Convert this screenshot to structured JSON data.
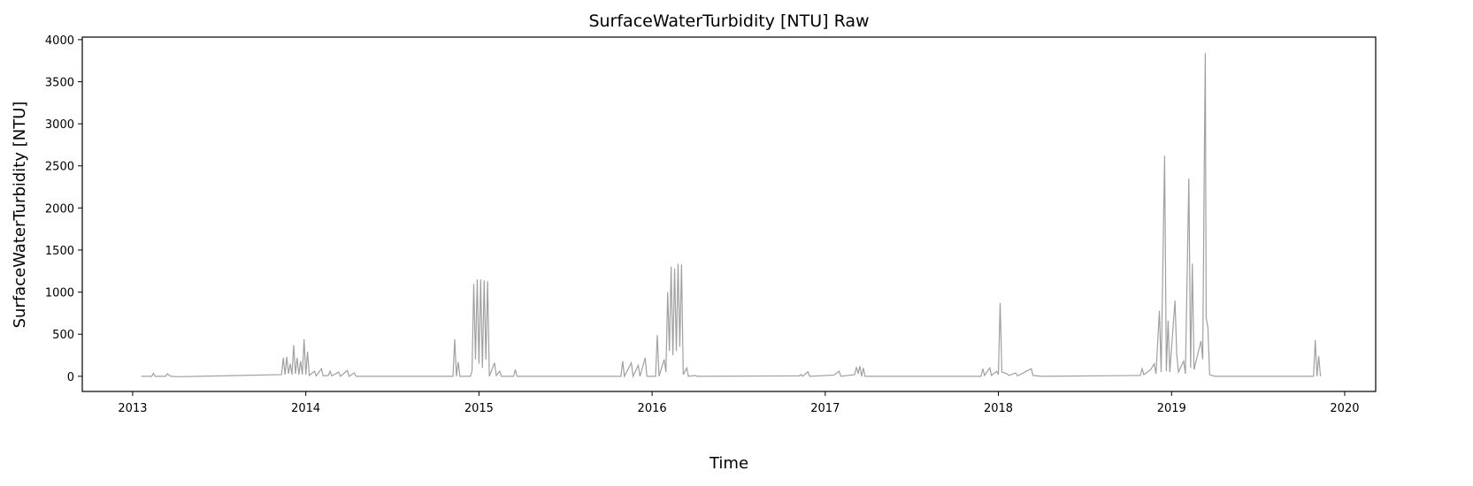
{
  "chart_data": {
    "type": "line",
    "title": "SurfaceWaterTurbidity [NTU] Raw",
    "xlabel": "Time",
    "ylabel": "SurfaceWaterTurbidity [NTU]",
    "x": [
      2013.05,
      2013.11,
      2013.12,
      2013.13,
      2013.19,
      2013.2,
      2013.22,
      2013.27,
      2013.86,
      2013.87,
      2013.88,
      2013.89,
      2013.9,
      2013.91,
      2013.92,
      2013.93,
      2013.94,
      2013.95,
      2013.96,
      2013.97,
      2013.98,
      2013.99,
      2014.0,
      2014.01,
      2014.02,
      2014.05,
      2014.06,
      2014.09,
      2014.1,
      2014.13,
      2014.14,
      2014.15,
      2014.19,
      2014.2,
      2014.24,
      2014.25,
      2014.28,
      2014.29,
      2014.85,
      2014.86,
      2014.87,
      2014.88,
      2014.89,
      2014.95,
      2014.96,
      2014.97,
      2014.98,
      2014.99,
      2015.0,
      2015.01,
      2015.02,
      2015.03,
      2015.04,
      2015.05,
      2015.06,
      2015.09,
      2015.1,
      2015.12,
      2015.13,
      2015.2,
      2015.21,
      2015.22,
      2015.82,
      2015.83,
      2015.84,
      2015.88,
      2015.89,
      2015.92,
      2015.93,
      2015.96,
      2015.97,
      2016.02,
      2016.03,
      2016.04,
      2016.07,
      2016.08,
      2016.09,
      2016.1,
      2016.11,
      2016.12,
      2016.13,
      2016.14,
      2016.15,
      2016.16,
      2016.17,
      2016.18,
      2016.2,
      2016.21,
      2016.25,
      2016.26,
      2016.85,
      2016.86,
      2016.87,
      2016.9,
      2016.91,
      2017.05,
      2017.08,
      2017.09,
      2017.17,
      2017.18,
      2017.19,
      2017.2,
      2017.21,
      2017.22,
      2017.23,
      2017.9,
      2017.91,
      2017.92,
      2017.95,
      2017.96,
      2017.99,
      2018.0,
      2018.01,
      2018.02,
      2018.05,
      2018.06,
      2018.1,
      2018.11,
      2018.19,
      2018.2,
      2018.25,
      2018.82,
      2018.83,
      2018.84,
      2018.88,
      2018.9,
      2018.91,
      2018.93,
      2018.94,
      2018.96,
      2018.97,
      2018.98,
      2018.99,
      2019.02,
      2019.03,
      2019.04,
      2019.07,
      2019.08,
      2019.1,
      2019.11,
      2019.12,
      2019.13,
      2019.17,
      2019.18,
      2019.19,
      2019.195,
      2019.2,
      2019.21,
      2019.22,
      2019.25,
      2019.82,
      2019.83,
      2019.84,
      2019.85,
      2019.86
    ],
    "series": [
      {
        "name": "SurfaceWaterTurbidity",
        "color": "#a0a0a0",
        "values": [
          0,
          0,
          35,
          0,
          0,
          30,
          0,
          -5,
          20,
          220,
          20,
          230,
          30,
          150,
          20,
          370,
          30,
          220,
          20,
          180,
          20,
          440,
          20,
          290,
          10,
          60,
          5,
          90,
          5,
          10,
          60,
          5,
          50,
          0,
          70,
          0,
          40,
          0,
          0,
          440,
          0,
          170,
          0,
          0,
          60,
          1100,
          200,
          1150,
          150,
          1150,
          100,
          1140,
          200,
          1130,
          0,
          160,
          10,
          60,
          0,
          0,
          80,
          0,
          0,
          180,
          0,
          160,
          0,
          130,
          0,
          220,
          0,
          0,
          490,
          0,
          200,
          50,
          1000,
          300,
          1300,
          250,
          1280,
          300,
          1340,
          350,
          1330,
          20,
          100,
          0,
          10,
          0,
          5,
          20,
          0,
          55,
          0,
          15,
          60,
          0,
          20,
          110,
          30,
          120,
          0,
          100,
          0,
          0,
          90,
          10,
          100,
          10,
          60,
          20,
          870,
          50,
          30,
          10,
          40,
          5,
          90,
          10,
          0,
          10,
          90,
          20,
          80,
          150,
          30,
          780,
          50,
          2620,
          60,
          660,
          50,
          900,
          260,
          50,
          180,
          30,
          2350,
          100,
          1340,
          80,
          420,
          200,
          2750,
          3840,
          700,
          580,
          20,
          0,
          0,
          430,
          0,
          240,
          0
        ]
      }
    ],
    "xlim": [
      2012.709,
      2020.179
    ],
    "xticks": [
      2013,
      2014,
      2015,
      2016,
      2017,
      2018,
      2019,
      2020
    ],
    "ylim": [
      -180,
      4030
    ],
    "yticks": [
      0,
      500,
      1000,
      1500,
      2000,
      2500,
      3000,
      3500,
      4000
    ],
    "grid": false
  }
}
